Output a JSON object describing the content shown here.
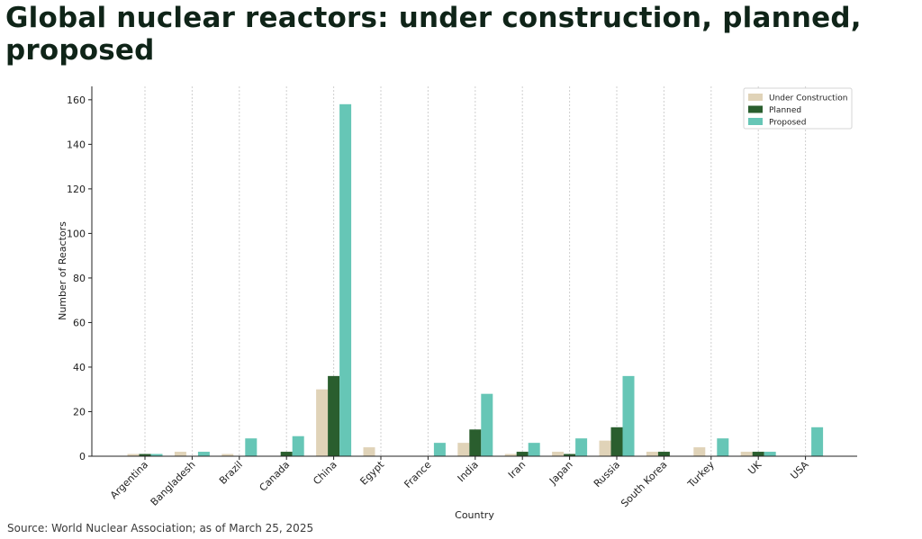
{
  "title": "Global nuclear reactors: under construction, planned, proposed",
  "source": "Source: World Nuclear Association; as of March 25, 2025",
  "chart_data": {
    "type": "bar",
    "categories": [
      "Argentina",
      "Bangladesh",
      "Brazil",
      "Canada",
      "China",
      "Egypt",
      "France",
      "India",
      "Iran",
      "Japan",
      "Russia",
      "South Korea",
      "Turkey",
      "UK",
      "USA"
    ],
    "series": [
      {
        "name": "Under Construction",
        "color": "#e0d3b8",
        "values": [
          1,
          2,
          1,
          0,
          30,
          4,
          0,
          6,
          1,
          2,
          7,
          2,
          4,
          2,
          0
        ]
      },
      {
        "name": "Planned",
        "color": "#2a5e2e",
        "values": [
          1,
          0,
          0,
          2,
          36,
          0,
          0,
          12,
          2,
          1,
          13,
          2,
          0,
          2,
          0
        ]
      },
      {
        "name": "Proposed",
        "color": "#66c6b6",
        "values": [
          1,
          2,
          8,
          9,
          158,
          0,
          6,
          28,
          6,
          8,
          36,
          0,
          8,
          2,
          13
        ]
      }
    ],
    "xlabel": "Country",
    "ylabel": "Number of Reactors",
    "ylim": [
      0,
      166
    ],
    "yticks": [
      0,
      20,
      40,
      60,
      80,
      100,
      120,
      140,
      160
    ],
    "grid": "vertical-dotted",
    "legend": "top-right"
  }
}
